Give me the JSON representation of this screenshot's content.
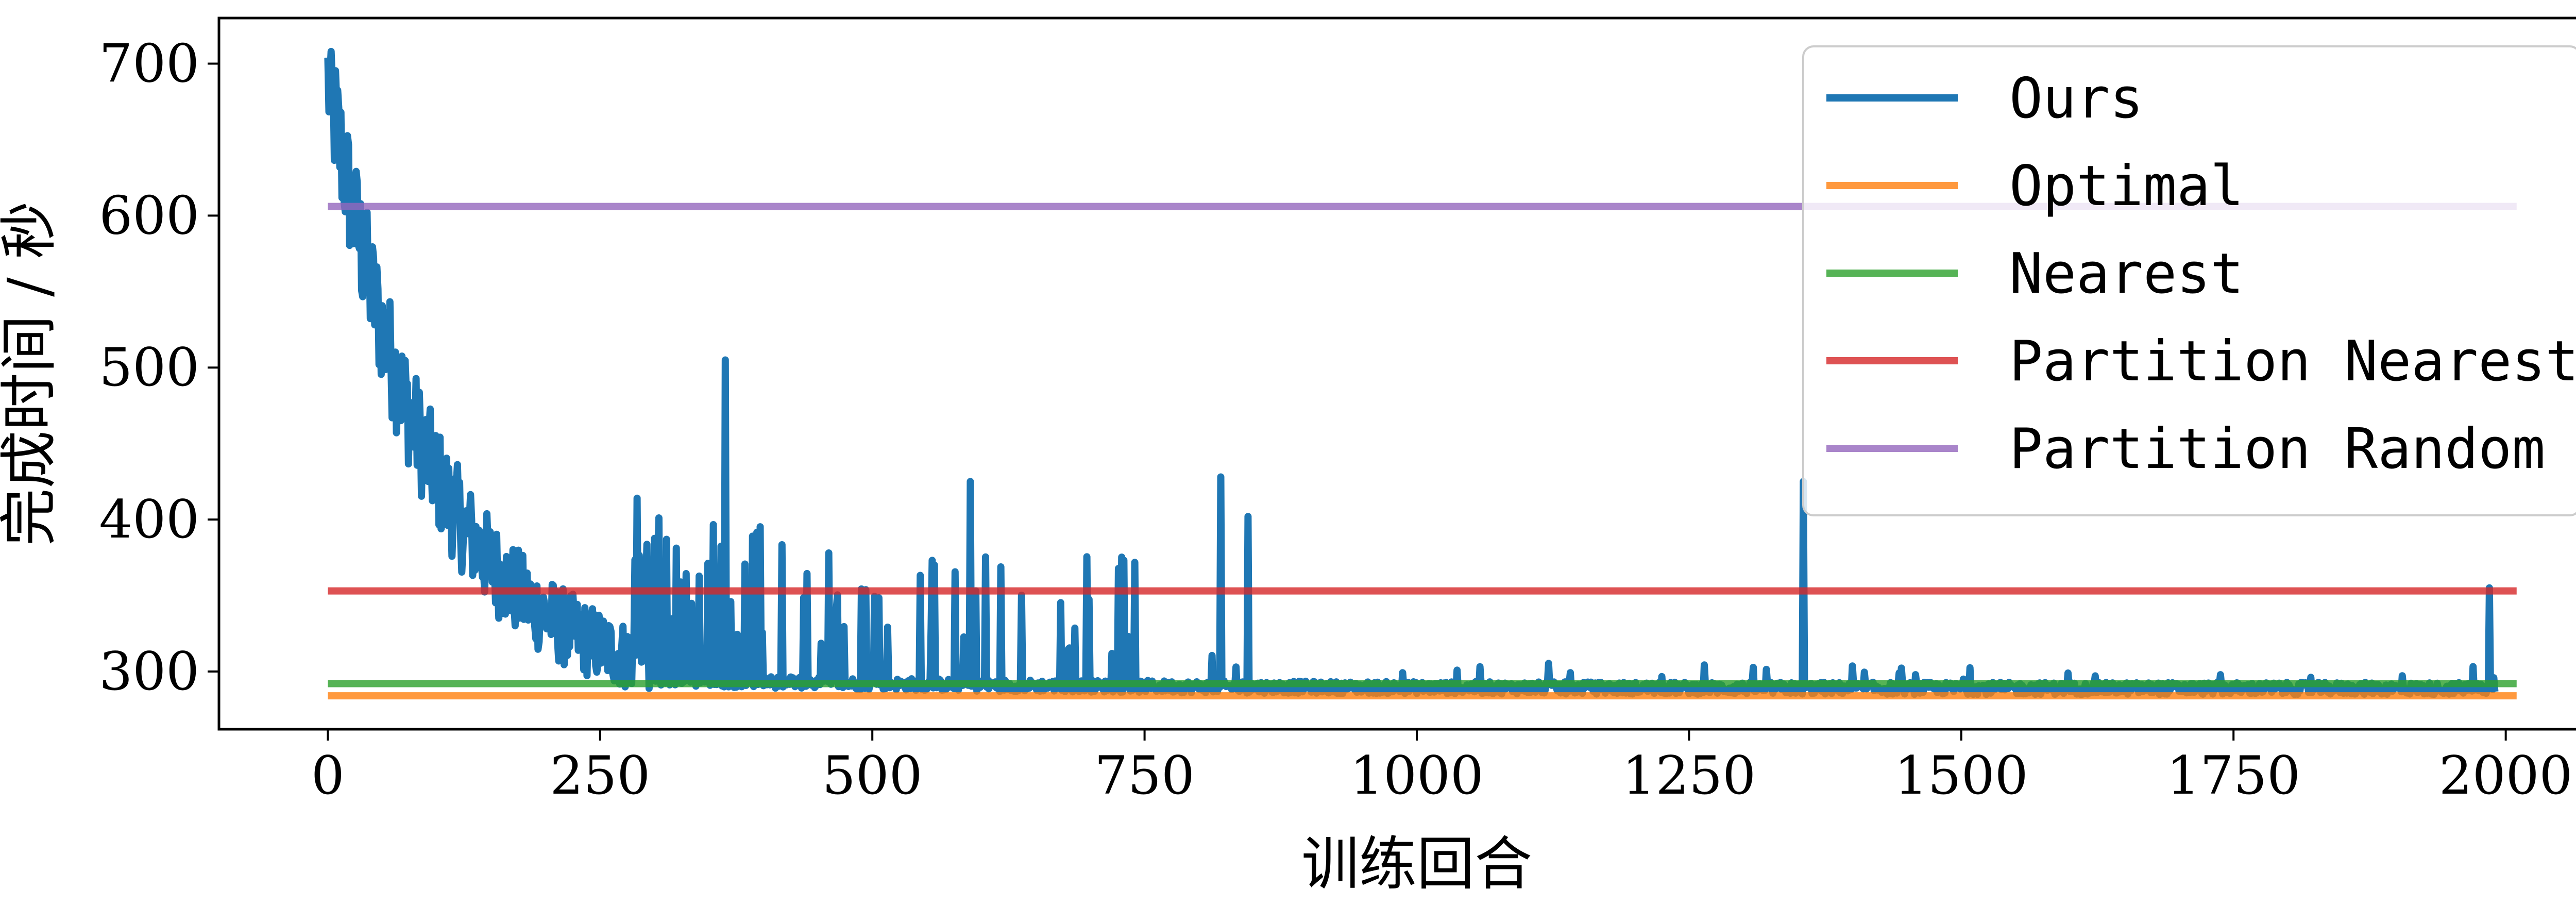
{
  "chart_data": {
    "type": "line",
    "title": "",
    "xlabel": "训练回合",
    "ylabel": "完成时间 / 秒",
    "xlim": [
      -100,
      2100
    ],
    "ylim": [
      262,
      730
    ],
    "xticks": [
      0,
      250,
      500,
      750,
      1000,
      1250,
      1500,
      1750,
      2000
    ],
    "yticks": [
      300,
      400,
      500,
      600,
      700
    ],
    "grid": false,
    "legend_position": "top-right",
    "series": [
      {
        "name": "Ours",
        "color": "#1f77b4",
        "kind": "noisy-training-curve",
        "x_range": [
          0,
          1990
        ],
        "initial_value": 690,
        "peak_value": 708,
        "final_value": 288,
        "spikes": [
          {
            "x": 365,
            "y": 505
          },
          {
            "x": 590,
            "y": 425
          },
          {
            "x": 820,
            "y": 428
          },
          {
            "x": 845,
            "y": 402
          },
          {
            "x": 1355,
            "y": 425
          },
          {
            "x": 1985,
            "y": 355
          }
        ]
      },
      {
        "name": "Optimal",
        "color": "#ff7f0e",
        "kind": "constant",
        "x_range": [
          0,
          2010
        ],
        "value": 284
      },
      {
        "name": "Nearest",
        "color": "#2ca02c",
        "kind": "constant",
        "x_range": [
          0,
          2010
        ],
        "value": 292
      },
      {
        "name": "Partition Nearest",
        "color": "#d62728",
        "kind": "constant",
        "x_range": [
          0,
          2010
        ],
        "value": 353
      },
      {
        "name": "Partition Random",
        "color": "#9467bd",
        "kind": "constant",
        "x_range": [
          0,
          2010
        ],
        "value": 606
      }
    ]
  }
}
